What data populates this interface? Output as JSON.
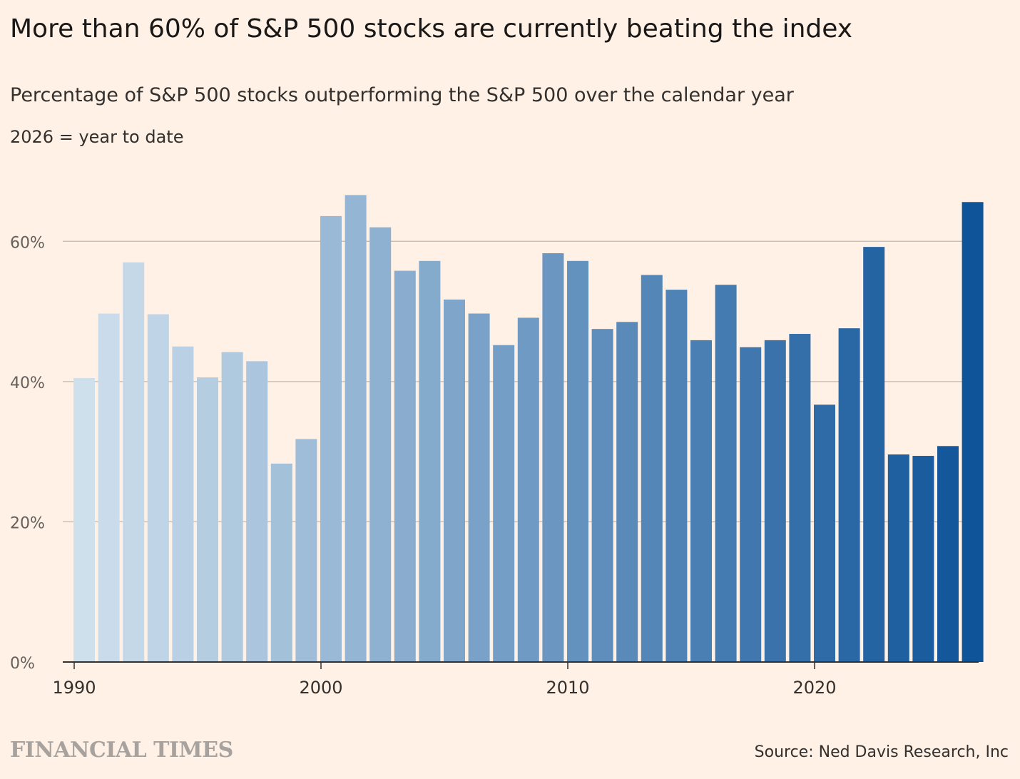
{
  "header": {
    "title": "More than 60% of S&P 500 stocks are currently beating the index",
    "subtitle": "Percentage of S&P 500 stocks outperforming the S&P 500 over the calendar year",
    "note": "2026 = year to date"
  },
  "footer": {
    "brand": "FINANCIAL TIMES",
    "source": "Source: Ned Davis Research, Inc"
  },
  "colors": {
    "background": "#fff1e5",
    "bar_start": "#cfe0ed",
    "bar_end": "#0f5499",
    "gridline": "#ccc1b7",
    "axis": "#33302e"
  },
  "chart_data": {
    "type": "bar",
    "xlabel": "",
    "ylabel": "",
    "ylim": [
      0,
      70
    ],
    "y_ticks": [
      0,
      20,
      40,
      60
    ],
    "y_tick_labels": [
      "0%",
      "20%",
      "40%",
      "60%"
    ],
    "x_ticks": [
      1990,
      2000,
      2010,
      2020
    ],
    "x_tick_labels": [
      "1990",
      "2000",
      "2010",
      "2020"
    ],
    "grid": true,
    "categories": [
      1990,
      1991,
      1992,
      1993,
      1994,
      1995,
      1996,
      1997,
      1998,
      1999,
      2000,
      2001,
      2002,
      2003,
      2004,
      2005,
      2006,
      2007,
      2008,
      2009,
      2010,
      2011,
      2012,
      2013,
      2014,
      2015,
      2016,
      2017,
      2018,
      2019,
      2020,
      2021,
      2022,
      2023,
      2024,
      2025,
      2026
    ],
    "values": [
      40.5,
      49.7,
      57.0,
      49.6,
      45.0,
      40.6,
      44.2,
      42.9,
      28.3,
      31.8,
      63.6,
      66.6,
      62.0,
      55.8,
      57.2,
      51.7,
      49.7,
      45.2,
      49.1,
      58.3,
      57.2,
      47.5,
      48.5,
      55.2,
      53.1,
      45.9,
      53.8,
      44.9,
      45.9,
      46.8,
      36.7,
      47.6,
      59.2,
      29.6,
      29.4,
      30.8,
      65.6
    ]
  }
}
